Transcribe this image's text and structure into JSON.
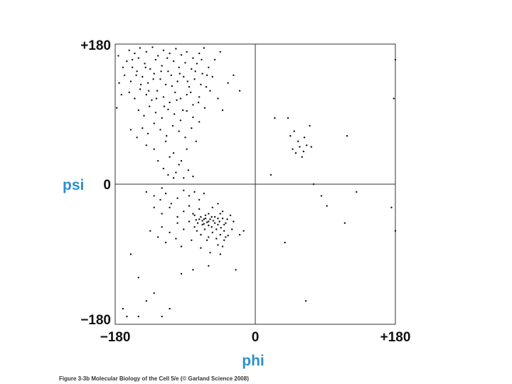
{
  "caption": "Figure 3-3b  Molecular Biology of the Cell 5/e (© Garland Science 2008)",
  "colors": {
    "axis_title": "#2c8fce",
    "points": "#111111",
    "frame": "#333333"
  },
  "chart_data": {
    "type": "scatter",
    "xlabel": "phi",
    "ylabel": "psi",
    "xlim": [
      -180,
      180
    ],
    "ylim": [
      -180,
      180
    ],
    "x_ticks": [
      {
        "value": -180,
        "label": "−180"
      },
      {
        "value": 0,
        "label": "0"
      },
      {
        "value": 180,
        "label": "+180"
      }
    ],
    "y_ticks": [
      {
        "value": 180,
        "label": "+180"
      },
      {
        "value": 0,
        "label": "0"
      },
      {
        "value": -180,
        "label": "−180"
      }
    ],
    "grid": false,
    "zero_lines": true,
    "points": [
      [
        -162,
        172
      ],
      [
        -155,
        168
      ],
      [
        -148,
        175
      ],
      [
        -140,
        170
      ],
      [
        -132,
        176
      ],
      [
        -125,
        165
      ],
      [
        -118,
        172
      ],
      [
        -110,
        168
      ],
      [
        -102,
        174
      ],
      [
        -95,
        166
      ],
      [
        -88,
        170
      ],
      [
        -80,
        162
      ],
      [
        -72,
        168
      ],
      [
        -66,
        175
      ],
      [
        -165,
        158
      ],
      [
        -158,
        150
      ],
      [
        -150,
        162
      ],
      [
        -142,
        155
      ],
      [
        -135,
        148
      ],
      [
        -128,
        160
      ],
      [
        -120,
        152
      ],
      [
        -112,
        145
      ],
      [
        -105,
        158
      ],
      [
        -98,
        150
      ],
      [
        -90,
        156
      ],
      [
        -82,
        148
      ],
      [
        -75,
        155
      ],
      [
        -68,
        142
      ],
      [
        -60,
        150
      ],
      [
        -55,
        138
      ],
      [
        -168,
        140
      ],
      [
        -160,
        132
      ],
      [
        -152,
        145
      ],
      [
        -145,
        138
      ],
      [
        -138,
        130
      ],
      [
        -130,
        142
      ],
      [
        -122,
        135
      ],
      [
        -115,
        128
      ],
      [
        -108,
        140
      ],
      [
        -100,
        132
      ],
      [
        -92,
        138
      ],
      [
        -85,
        125
      ],
      [
        -78,
        135
      ],
      [
        -70,
        128
      ],
      [
        -62,
        140
      ],
      [
        -58,
        120
      ],
      [
        -162,
        118
      ],
      [
        -155,
        110
      ],
      [
        -148,
        122
      ],
      [
        -140,
        115
      ],
      [
        -133,
        108
      ],
      [
        -126,
        120
      ],
      [
        -118,
        112
      ],
      [
        -110,
        105
      ],
      [
        -103,
        118
      ],
      [
        -96,
        110
      ],
      [
        -88,
        115
      ],
      [
        -80,
        102
      ],
      [
        -72,
        112
      ],
      [
        -65,
        98
      ],
      [
        -150,
        95
      ],
      [
        -143,
        88
      ],
      [
        -136,
        100
      ],
      [
        -128,
        92
      ],
      [
        -120,
        85
      ],
      [
        -112,
        96
      ],
      [
        -104,
        90
      ],
      [
        -96,
        82
      ],
      [
        -88,
        94
      ],
      [
        -80,
        86
      ],
      [
        -72,
        80
      ],
      [
        -145,
        72
      ],
      [
        -138,
        65
      ],
      [
        -130,
        78
      ],
      [
        -122,
        70
      ],
      [
        -114,
        62
      ],
      [
        -106,
        75
      ],
      [
        -98,
        68
      ],
      [
        -90,
        60
      ],
      [
        -82,
        72
      ],
      [
        -76,
        55
      ],
      [
        -158,
        160
      ],
      [
        -153,
        140
      ],
      [
        -147,
        128
      ],
      [
        -141,
        150
      ],
      [
        -137,
        120
      ],
      [
        -131,
        135
      ],
      [
        -127,
        110
      ],
      [
        -121,
        145
      ],
      [
        -117,
        100
      ],
      [
        -113,
        162
      ],
      [
        -107,
        126
      ],
      [
        -101,
        108
      ],
      [
        -97,
        142
      ],
      [
        -93,
        95
      ],
      [
        -87,
        132
      ],
      [
        -83,
        118
      ],
      [
        -77,
        145
      ],
      [
        -73,
        105
      ],
      [
        -69,
        160
      ],
      [
        -63,
        125
      ],
      [
        -175,
        130
      ],
      [
        -172,
        115
      ],
      [
        -178,
        98
      ],
      [
        -170,
        150
      ],
      [
        -176,
        165
      ],
      [
        -48,
        110
      ],
      [
        -42,
        95
      ],
      [
        -35,
        130
      ],
      [
        -28,
        140
      ],
      [
        -20,
        120
      ],
      [
        -52,
        160
      ],
      [
        -45,
        170
      ],
      [
        -160,
        70
      ],
      [
        -152,
        60
      ],
      [
        -140,
        50
      ],
      [
        -130,
        45
      ],
      [
        -115,
        55
      ],
      [
        -105,
        40
      ],
      [
        -95,
        30
      ],
      [
        -88,
        45
      ],
      [
        -125,
        30
      ],
      [
        -118,
        20
      ],
      [
        -110,
        35
      ],
      [
        -102,
        15
      ],
      [
        -98,
        25
      ],
      [
        -92,
        8
      ],
      [
        -86,
        18
      ],
      [
        -80,
        10
      ],
      [
        -105,
        8
      ],
      [
        -112,
        12
      ],
      [
        -120,
        -5
      ],
      [
        -140,
        -10
      ],
      [
        -130,
        -15
      ],
      [
        -122,
        -20
      ],
      [
        -115,
        -12
      ],
      [
        -108,
        -25
      ],
      [
        -100,
        -18
      ],
      [
        -92,
        -8
      ],
      [
        -85,
        -15
      ],
      [
        -78,
        -10
      ],
      [
        -72,
        -20
      ],
      [
        -66,
        -12
      ],
      [
        -130,
        -30
      ],
      [
        -120,
        -38
      ],
      [
        -110,
        -30
      ],
      [
        -100,
        -42
      ],
      [
        -92,
        -35
      ],
      [
        -85,
        -28
      ],
      [
        -78,
        -40
      ],
      [
        -72,
        -32
      ],
      [
        -66,
        -45
      ],
      [
        -60,
        -38
      ],
      [
        -55,
        -30
      ],
      [
        -48,
        -25
      ],
      [
        -42,
        -35
      ],
      [
        -120,
        -55
      ],
      [
        -110,
        -62
      ],
      [
        -100,
        -50
      ],
      [
        -92,
        -58
      ],
      [
        -85,
        -48
      ],
      [
        -78,
        -55
      ],
      [
        -72,
        -45
      ],
      [
        -68,
        -52
      ],
      [
        -64,
        -40
      ],
      [
        -60,
        -48
      ],
      [
        -56,
        -42
      ],
      [
        -52,
        -50
      ],
      [
        -48,
        -44
      ],
      [
        -45,
        -38
      ],
      [
        -40,
        -52
      ],
      [
        -36,
        -45
      ],
      [
        -32,
        -40
      ],
      [
        -28,
        -48
      ],
      [
        -80,
        -38
      ],
      [
        -76,
        -46
      ],
      [
        -74,
        -50
      ],
      [
        -70,
        -42
      ],
      [
        -68,
        -47
      ],
      [
        -66,
        -51
      ],
      [
        -64,
        -44
      ],
      [
        -62,
        -49
      ],
      [
        -60,
        -53
      ],
      [
        -58,
        -45
      ],
      [
        -56,
        -55
      ],
      [
        -54,
        -47
      ],
      [
        -52,
        -42
      ],
      [
        -50,
        -58
      ],
      [
        -48,
        -52
      ],
      [
        -46,
        -48
      ],
      [
        -44,
        -56
      ],
      [
        -42,
        -44
      ],
      [
        -40,
        -60
      ],
      [
        -38,
        -50
      ],
      [
        -75,
        -60
      ],
      [
        -70,
        -65
      ],
      [
        -65,
        -58
      ],
      [
        -60,
        -68
      ],
      [
        -55,
        -62
      ],
      [
        -50,
        -70
      ],
      [
        -45,
        -65
      ],
      [
        -40,
        -72
      ],
      [
        -35,
        -66
      ],
      [
        -30,
        -58
      ],
      [
        -62,
        -72
      ],
      [
        -48,
        -78
      ],
      [
        -42,
        -80
      ],
      [
        -38,
        -68
      ],
      [
        -135,
        -60
      ],
      [
        -125,
        -68
      ],
      [
        -115,
        -75
      ],
      [
        -102,
        -70
      ],
      [
        -95,
        -80
      ],
      [
        -82,
        -72
      ],
      [
        -70,
        -82
      ],
      [
        -58,
        -88
      ],
      [
        -45,
        -90
      ],
      [
        -20,
        -65
      ],
      [
        -15,
        -60
      ],
      [
        -160,
        -90
      ],
      [
        -150,
        -120
      ],
      [
        -140,
        -150
      ],
      [
        -130,
        -140
      ],
      [
        -120,
        -170
      ],
      [
        -110,
        -160
      ],
      [
        -95,
        -115
      ],
      [
        -80,
        -110
      ],
      [
        -60,
        -105
      ],
      [
        -25,
        -110
      ],
      [
        -170,
        -160
      ],
      [
        -165,
        -170
      ],
      [
        -150,
        -170
      ],
      [
        20,
        12
      ],
      [
        25,
        85
      ],
      [
        42,
        85
      ],
      [
        45,
        62
      ],
      [
        48,
        45
      ],
      [
        50,
        68
      ],
      [
        52,
        40
      ],
      [
        55,
        55
      ],
      [
        57,
        48
      ],
      [
        60,
        35
      ],
      [
        62,
        42
      ],
      [
        63,
        60
      ],
      [
        66,
        50
      ],
      [
        70,
        75
      ],
      [
        72,
        48
      ],
      [
        75,
        0
      ],
      [
        85,
        -15
      ],
      [
        92,
        -28
      ],
      [
        115,
        -50
      ],
      [
        118,
        62
      ],
      [
        130,
        -10
      ],
      [
        180,
        160
      ],
      [
        178,
        110
      ],
      [
        38,
        -75
      ],
      [
        65,
        -150
      ],
      [
        175,
        -30
      ],
      [
        180,
        -60
      ]
    ]
  }
}
